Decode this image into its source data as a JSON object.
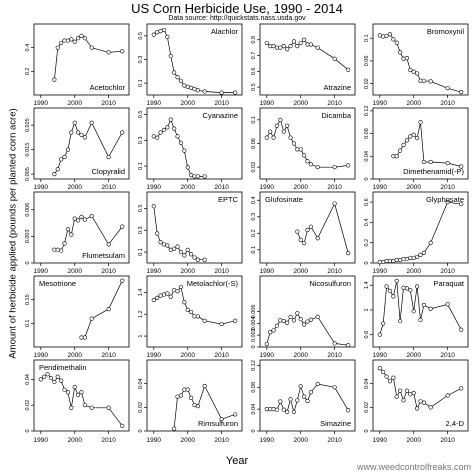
{
  "figure": {
    "title": "US Corn Herbicide Use, 1990 - 2014",
    "subtitle": "Data source: http://quickstats.nass.usda.gov",
    "ylabel": "Amount of herbicide applied (pounds per planted corn acre)",
    "xlabel": "Year",
    "watermark": "www.weedcontrolfreaks.com"
  },
  "chart_data": [
    {
      "type": "line",
      "panel": "Acetochlor",
      "title": "Acetochlor",
      "xlim": [
        1988,
        2016
      ],
      "ylim": [
        0,
        0.6
      ],
      "yticks": [
        0.2,
        0.4
      ],
      "xticks": [
        1990,
        2000,
        2010
      ],
      "x": [
        1994,
        1995,
        1996,
        1997,
        1998,
        1999,
        2000,
        2001,
        2002,
        2003,
        2005,
        2010,
        2014
      ],
      "values": [
        0.13,
        0.4,
        0.44,
        0.46,
        0.46,
        0.47,
        0.45,
        0.48,
        0.5,
        0.48,
        0.4,
        0.36,
        0.37
      ]
    },
    {
      "type": "line",
      "panel": "Alachlor",
      "title": "Alachlor",
      "xlim": [
        1988,
        2016
      ],
      "ylim": [
        0,
        0.6
      ],
      "yticks": [
        0.1,
        0.3,
        0.5
      ],
      "xticks": [
        1990,
        2000,
        2010
      ],
      "x": [
        1990,
        1991,
        1992,
        1993,
        1994,
        1995,
        1996,
        1997,
        1998,
        1999,
        2000,
        2001,
        2002,
        2003,
        2005,
        2010,
        2014
      ],
      "values": [
        0.51,
        0.53,
        0.54,
        0.55,
        0.49,
        0.33,
        0.19,
        0.15,
        0.12,
        0.08,
        0.07,
        0.06,
        0.05,
        0.04,
        0.03,
        0.02,
        0.02
      ]
    },
    {
      "type": "line",
      "panel": "Atrazine",
      "title": "Atrazine",
      "xlim": [
        1988,
        2016
      ],
      "ylim": [
        0.45,
        0.9
      ],
      "yticks": [
        0.5,
        0.6,
        0.7,
        0.8
      ],
      "xticks": [
        1990,
        2000,
        2010
      ],
      "x": [
        1990,
        1991,
        1992,
        1993,
        1994,
        1995,
        1996,
        1997,
        1998,
        1999,
        2000,
        2001,
        2002,
        2003,
        2005,
        2010,
        2014
      ],
      "values": [
        0.78,
        0.76,
        0.76,
        0.75,
        0.75,
        0.76,
        0.74,
        0.76,
        0.79,
        0.76,
        0.78,
        0.8,
        0.77,
        0.77,
        0.75,
        0.68,
        0.61
      ]
    },
    {
      "type": "line",
      "panel": "Bromoxynil",
      "title": "Bromoxynil",
      "xlim": [
        1988,
        2016
      ],
      "ylim": [
        0,
        0.125
      ],
      "yticks": [
        0.02,
        0.06,
        0.1
      ],
      "xticks": [
        1990,
        2000,
        2010
      ],
      "x": [
        1990,
        1991,
        1992,
        1993,
        1994,
        1995,
        1996,
        1997,
        1998,
        1999,
        2000,
        2001,
        2002,
        2003,
        2005,
        2010,
        2014
      ],
      "values": [
        0.105,
        0.103,
        0.104,
        0.107,
        0.098,
        0.092,
        0.075,
        0.064,
        0.065,
        0.044,
        0.041,
        0.038,
        0.025,
        0.025,
        0.024,
        0.012,
        0.005
      ]
    },
    {
      "type": "line",
      "panel": "Clopyralid",
      "title": "Clopyralid",
      "xlim": [
        1988,
        2016
      ],
      "ylim": [
        0.003,
        0.032
      ],
      "yticks": [
        0.005,
        0.015,
        0.025
      ],
      "xticks": [
        1990,
        2000,
        2010
      ],
      "x": [
        1994,
        1995,
        1996,
        1997,
        1998,
        1999,
        2000,
        2001,
        2002,
        2003,
        2005,
        2010,
        2014
      ],
      "values": [
        0.005,
        0.007,
        0.011,
        0.012,
        0.015,
        0.022,
        0.026,
        0.022,
        0.021,
        0.02,
        0.026,
        0.012,
        0.022
      ]
    },
    {
      "type": "line",
      "panel": "Cyanazine",
      "title": "Cyanazine",
      "xlim": [
        1988,
        2016
      ],
      "ylim": [
        0,
        0.55
      ],
      "yticks": [
        0.1,
        0.3,
        0.5
      ],
      "xticks": [
        1990,
        2000,
        2010
      ],
      "x": [
        1990,
        1991,
        1992,
        1993,
        1994,
        1995,
        1996,
        1997,
        1998,
        1999,
        2000,
        2001,
        2002,
        2003,
        2005
      ],
      "values": [
        0.33,
        0.32,
        0.36,
        0.38,
        0.4,
        0.46,
        0.39,
        0.33,
        0.28,
        0.22,
        0.09,
        0.03,
        0.02,
        0.02,
        0.02
      ]
    },
    {
      "type": "line",
      "panel": "Dicamba",
      "title": "Dicamba",
      "xlim": [
        1988,
        2016
      ],
      "ylim": [
        0,
        0.12
      ],
      "yticks": [
        0.02,
        0.06,
        0.1
      ],
      "xticks": [
        1990,
        2000,
        2010
      ],
      "x": [
        1990,
        1991,
        1992,
        1993,
        1994,
        1995,
        1996,
        1997,
        1998,
        1999,
        2000,
        2001,
        2002,
        2003,
        2005,
        2010,
        2014
      ],
      "values": [
        0.07,
        0.08,
        0.07,
        0.09,
        0.1,
        0.08,
        0.09,
        0.07,
        0.06,
        0.05,
        0.05,
        0.04,
        0.03,
        0.025,
        0.02,
        0.02,
        0.023
      ]
    },
    {
      "type": "line",
      "panel": "Dimethenamid(-P)",
      "title": "Dimethenamid(-P)",
      "xlim": [
        1988,
        2016
      ],
      "ylim": [
        0,
        0.125
      ],
      "yticks": [
        0,
        0.04,
        0.08,
        0.12
      ],
      "xticks": [
        1990,
        2000,
        2010
      ],
      "x": [
        1994,
        1995,
        1996,
        1997,
        1998,
        1999,
        2000,
        2001,
        2002,
        2003,
        2005,
        2010,
        2014
      ],
      "values": [
        0.04,
        0.04,
        0.05,
        0.06,
        0.068,
        0.075,
        0.078,
        0.072,
        0.1,
        0.03,
        0.03,
        0.028,
        0.022
      ]
    },
    {
      "type": "line",
      "panel": "Flumetsulam",
      "title": "Flumetsulam",
      "xlim": [
        1988,
        2016
      ],
      "ylim": [
        0,
        0.008
      ],
      "yticks": [
        0,
        0.003,
        0.006
      ],
      "xticks": [
        1990,
        2000,
        2010
      ],
      "x": [
        1994,
        1995,
        1996,
        1997,
        1998,
        1999,
        2000,
        2001,
        2002,
        2003,
        2005,
        2010,
        2014
      ],
      "values": [
        0.0015,
        0.0015,
        0.0014,
        0.0022,
        0.0038,
        0.0032,
        0.005,
        0.0048,
        0.0052,
        0.0049,
        0.0053,
        0.0021,
        0.0041
      ]
    },
    {
      "type": "line",
      "panel": "EPTC",
      "title": "EPTC",
      "xlim": [
        1988,
        2016
      ],
      "ylim": [
        0,
        0.65
      ],
      "yticks": [
        0.1,
        0.3,
        0.5
      ],
      "xticks": [
        1990,
        2000,
        2010
      ],
      "x": [
        1990,
        1991,
        1992,
        1993,
        1994,
        1995,
        1996,
        1997,
        1998,
        1999,
        2000,
        2001,
        2002,
        2003,
        2005
      ],
      "values": [
        0.52,
        0.27,
        0.19,
        0.17,
        0.16,
        0.12,
        0.13,
        0.15,
        0.1,
        0.07,
        0.12,
        0.08,
        0.05,
        0.03,
        0.03
      ]
    },
    {
      "type": "line",
      "panel": "Glufosinate",
      "title": "Glufosinate",
      "xlim": [
        1988,
        2016
      ],
      "ylim": [
        0.02,
        0.45
      ],
      "yticks": [
        0.1,
        0.2,
        0.3,
        0.4
      ],
      "xticks": [
        1990,
        2000,
        2010
      ],
      "x": [
        1999,
        2000,
        2001,
        2002,
        2003,
        2005,
        2010,
        2014
      ],
      "values": [
        0.21,
        0.16,
        0.14,
        0.22,
        0.24,
        0.17,
        0.38,
        0.08
      ]
    },
    {
      "type": "line",
      "panel": "Glyphosate",
      "title": "Glyphosate",
      "xlim": [
        1988,
        2016
      ],
      "ylim": [
        0,
        0.7
      ],
      "yticks": [
        0,
        0.2,
        0.4,
        0.6
      ],
      "xticks": [
        1990,
        2000,
        2010
      ],
      "x": [
        1990,
        1991,
        1992,
        1993,
        1994,
        1995,
        1996,
        1997,
        1998,
        1999,
        2000,
        2001,
        2002,
        2003,
        2005,
        2010,
        2014
      ],
      "values": [
        0.01,
        0.01,
        0.02,
        0.02,
        0.02,
        0.03,
        0.03,
        0.04,
        0.04,
        0.05,
        0.05,
        0.06,
        0.08,
        0.1,
        0.2,
        0.6,
        0.58
      ]
    },
    {
      "type": "line",
      "panel": "Mesotrione",
      "title": "Mesotrione",
      "xlim": [
        1988,
        2016
      ],
      "ylim": [
        0.05,
        0.2
      ],
      "yticks": [
        0.1,
        0.15
      ],
      "xticks": [
        1990,
        2000,
        2010
      ],
      "x": [
        2002,
        2003,
        2005,
        2010,
        2014
      ],
      "values": [
        0.07,
        0.07,
        0.11,
        0.13,
        0.19
      ]
    },
    {
      "type": "line",
      "panel": "Metolachlor(-S)",
      "title": "Metolachlor(-S)",
      "xlim": [
        1988,
        2016
      ],
      "ylim": [
        0.9,
        1.55
      ],
      "yticks": [
        1.0,
        1.2,
        1.4
      ],
      "xticks": [
        1990,
        2000,
        2010
      ],
      "x": [
        1990,
        1991,
        1992,
        1993,
        1994,
        1995,
        1996,
        1997,
        1998,
        1999,
        2000,
        2001,
        2002,
        2003,
        2005,
        2010,
        2014
      ],
      "values": [
        1.33,
        1.35,
        1.37,
        1.38,
        1.39,
        1.36,
        1.42,
        1.41,
        1.45,
        1.31,
        1.24,
        1.22,
        1.18,
        1.18,
        1.14,
        1.11,
        1.14
      ]
    },
    {
      "type": "line",
      "panel": "Nicosulfuron",
      "title": "Nicosulfuron",
      "xlim": [
        1988,
        2016
      ],
      "ylim": [
        0,
        0.012
      ],
      "yticks": [
        0,
        0.002,
        0.004,
        0.006
      ],
      "xticks": [
        1990,
        2000,
        2010
      ],
      "x": [
        1990,
        1991,
        1992,
        1993,
        1994,
        1995,
        1996,
        1997,
        1998,
        1999,
        2000,
        2001,
        2002,
        2003,
        2005,
        2010,
        2014
      ],
      "values": [
        0.0005,
        0.0025,
        0.0028,
        0.0036,
        0.0045,
        0.0044,
        0.0041,
        0.0051,
        0.0045,
        0.0057,
        0.0047,
        0.0038,
        0.0043,
        0.0046,
        0.0051,
        0.0006,
        0.0003
      ]
    },
    {
      "type": "line",
      "panel": "Paraquat",
      "title": "Paraquat",
      "xlim": [
        1988,
        2016
      ],
      "ylim": [
        0.4,
        1.55
      ],
      "yticks": [
        0.6,
        1.0,
        1.4
      ],
      "xticks": [
        1990,
        2000,
        2010
      ],
      "x": [
        1990,
        1991,
        1992,
        1993,
        1994,
        1995,
        1996,
        1997,
        1998,
        1999,
        2000,
        2001,
        2002,
        2003,
        2005,
        2010,
        2014
      ],
      "values": [
        0.6,
        0.78,
        1.38,
        1.31,
        1.22,
        1.47,
        0.82,
        1.36,
        1.35,
        1.32,
        0.98,
        1.38,
        0.84,
        1.08,
        1.02,
        1.09,
        0.68
      ]
    },
    {
      "type": "line",
      "panel": "Pendimethalin",
      "title": "Pendimethalin",
      "xlim": [
        1988,
        2016
      ],
      "ylim": [
        0,
        0.055
      ],
      "yticks": [
        0,
        0.02,
        0.04
      ],
      "xticks": [
        1990,
        2000,
        2010
      ],
      "x": [
        1990,
        1991,
        1992,
        1993,
        1994,
        1995,
        1996,
        1997,
        1998,
        1999,
        2000,
        2001,
        2002,
        2003,
        2005,
        2010,
        2014
      ],
      "values": [
        0.04,
        0.042,
        0.044,
        0.041,
        0.038,
        0.042,
        0.039,
        0.032,
        0.03,
        0.018,
        0.034,
        0.028,
        0.03,
        0.02,
        0.018,
        0.018,
        0.004
      ]
    },
    {
      "type": "line",
      "panel": "Rimsulfuron",
      "title": "Rimsulfuron",
      "xlim": [
        1988,
        2016
      ],
      "ylim": [
        0,
        0.06
      ],
      "yticks": [
        0,
        0.02,
        0.04
      ],
      "xticks": [
        1990,
        2000,
        2010
      ],
      "x": [
        1996,
        1997,
        1998,
        1999,
        2000,
        2001,
        2002,
        2003,
        2005,
        2010,
        2014
      ],
      "values": [
        0.002,
        0.029,
        0.03,
        0.035,
        0.035,
        0.028,
        0.022,
        0.021,
        0.038,
        0.01,
        0.014
      ]
    },
    {
      "type": "line",
      "panel": "Simazine",
      "title": "Simazine",
      "xlim": [
        1988,
        2016
      ],
      "ylim": [
        0,
        0.13
      ],
      "yticks": [
        0,
        0.04,
        0.08,
        0.12
      ],
      "xticks": [
        1990,
        2000,
        2010
      ],
      "x": [
        1990,
        1991,
        1992,
        1993,
        1994,
        1995,
        1996,
        1997,
        1998,
        1999,
        2000,
        2001,
        2002,
        2003,
        2005,
        2010,
        2014
      ],
      "values": [
        0.04,
        0.04,
        0.04,
        0.039,
        0.054,
        0.039,
        0.035,
        0.058,
        0.035,
        0.056,
        0.082,
        0.063,
        0.055,
        0.071,
        0.086,
        0.08,
        0.038
      ]
    },
    {
      "type": "line",
      "panel": "2,4-D",
      "title": "2,4-D",
      "xlim": [
        1988,
        2016
      ],
      "ylim": [
        0,
        0.06
      ],
      "yticks": [
        0,
        0.02,
        0.04
      ],
      "xticks": [
        1990,
        2000,
        2010
      ],
      "x": [
        1990,
        1991,
        1992,
        1993,
        1994,
        1995,
        1996,
        1997,
        1998,
        1999,
        2000,
        2001,
        2002,
        2003,
        2005,
        2010,
        2014
      ],
      "values": [
        0.053,
        0.05,
        0.046,
        0.042,
        0.045,
        0.029,
        0.034,
        0.026,
        0.034,
        0.031,
        0.032,
        0.019,
        0.025,
        0.024,
        0.02,
        0.03,
        0.036
      ]
    }
  ]
}
